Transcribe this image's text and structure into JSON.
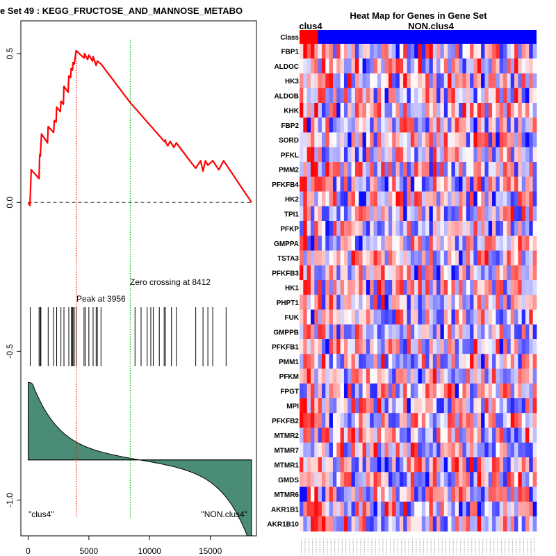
{
  "chart_data": [
    {
      "type": "line",
      "title": "e Set  49 : KEGG_FRUCTOSE_AND_MANNOSE_METABO",
      "xlabel": "",
      "ylabel": "",
      "xlim": [
        -600,
        18800
      ],
      "ylim": [
        -1.12,
        0.61
      ],
      "x_ticks": [
        0,
        5000,
        10000,
        15000
      ],
      "x_tick_labels": [
        "0",
        "5000",
        "10000",
        "15000"
      ],
      "y_ticks": [
        0.5,
        0.0,
        -0.5,
        -1.0
      ],
      "y_tick_labels": [
        "0.5",
        "0.0",
        "-0.5",
        "-1.0"
      ],
      "es_points": [
        [
          0,
          0.0
        ],
        [
          150,
          -0.01
        ],
        [
          250,
          0.11
        ],
        [
          900,
          0.08
        ],
        [
          950,
          0.16
        ],
        [
          1000,
          0.155
        ],
        [
          1100,
          0.23
        ],
        [
          1600,
          0.2
        ],
        [
          1650,
          0.255
        ],
        [
          2100,
          0.235
        ],
        [
          2150,
          0.275
        ],
        [
          2300,
          0.27
        ],
        [
          2350,
          0.32
        ],
        [
          2650,
          0.305
        ],
        [
          2700,
          0.34
        ],
        [
          2900,
          0.33
        ],
        [
          2950,
          0.39
        ],
        [
          3300,
          0.37
        ],
        [
          3350,
          0.425
        ],
        [
          3500,
          0.42
        ],
        [
          3550,
          0.45
        ],
        [
          3650,
          0.445
        ],
        [
          3700,
          0.47
        ],
        [
          3800,
          0.465
        ],
        [
          3956,
          0.51
        ],
        [
          4600,
          0.485
        ],
        [
          4650,
          0.5
        ],
        [
          4900,
          0.48
        ],
        [
          5000,
          0.495
        ],
        [
          5300,
          0.475
        ],
        [
          5350,
          0.49
        ],
        [
          5600,
          0.46
        ],
        [
          5700,
          0.475
        ],
        [
          6000,
          0.465
        ],
        [
          8412,
          0.335
        ],
        [
          11000,
          0.215
        ],
        [
          11100,
          0.21
        ],
        [
          11200,
          0.205
        ],
        [
          11300,
          0.21
        ],
        [
          11350,
          0.2
        ],
        [
          11500,
          0.19
        ],
        [
          11700,
          0.205
        ],
        [
          12000,
          0.185
        ],
        [
          12200,
          0.2
        ],
        [
          13500,
          0.13
        ],
        [
          13800,
          0.115
        ],
        [
          14200,
          0.14
        ],
        [
          14400,
          0.105
        ],
        [
          14600,
          0.14
        ],
        [
          14800,
          0.125
        ],
        [
          15200,
          0.14
        ],
        [
          15700,
          0.11
        ],
        [
          16100,
          0.14
        ],
        [
          18400,
          0.0
        ]
      ],
      "baseline": 0.0,
      "hit_positions": [
        170,
        900,
        1000,
        1050,
        1650,
        2100,
        2350,
        2700,
        2950,
        3350,
        3550,
        3650,
        3700,
        3800,
        3956,
        4600,
        4700,
        5000,
        5350,
        5600,
        5700,
        6000,
        8800,
        9300,
        9800,
        10100,
        10300,
        10800,
        11200,
        11300,
        11800,
        12200,
        13800,
        14400,
        14800,
        15200,
        16300
      ],
      "peak": {
        "x": 3956,
        "label": "Peak at 3956"
      },
      "zero_crossing": {
        "x": 8412,
        "label": "Zero crossing at 8412"
      },
      "rank_metric_zero_y": -0.865,
      "rank_metric_top_y": -0.605,
      "rank_metric_bottom_y": -1.12,
      "left_label": "\"clus4\"",
      "right_label": "\"NON.clus4\"",
      "colors": {
        "es_line": "#ff0000",
        "peak_line": "#ff0000",
        "zero_line": "#00bb00",
        "metric_fill": "#4a8c76"
      }
    },
    {
      "type": "heatmap",
      "title": "Heat Map for Genes in Gene Set",
      "class_row_label": "Class",
      "group_labels": [
        "clus4",
        "NON.clus4"
      ],
      "n_columns": 64,
      "n_group1_columns": 5,
      "genes": [
        "FBP1",
        "ALDOC",
        "HK3",
        "ALDOB",
        "KHK",
        "FBP2",
        "SORD",
        "PFKL",
        "PMM2",
        "PFKFB4",
        "HK2",
        "TPI1",
        "PFKP",
        "GMPPA",
        "TSTA3",
        "PFKFB3",
        "HK1",
        "PHPT1",
        "FUK",
        "GMPPB",
        "PFKFB1",
        "PMM1",
        "PFKM",
        "FPGT",
        "MPI",
        "PFKFB2",
        "MTMR2",
        "MTMR7",
        "MTMR1",
        "GMDS",
        "MTMR6",
        "AKR1B1",
        "AKR1B10"
      ],
      "value_range": [
        -1,
        1
      ],
      "colors": {
        "group1": "#ff0000",
        "group2": "#0000ff",
        "low": "#0000ff",
        "mid": "#ffffff",
        "high": "#ff0000"
      }
    }
  ]
}
